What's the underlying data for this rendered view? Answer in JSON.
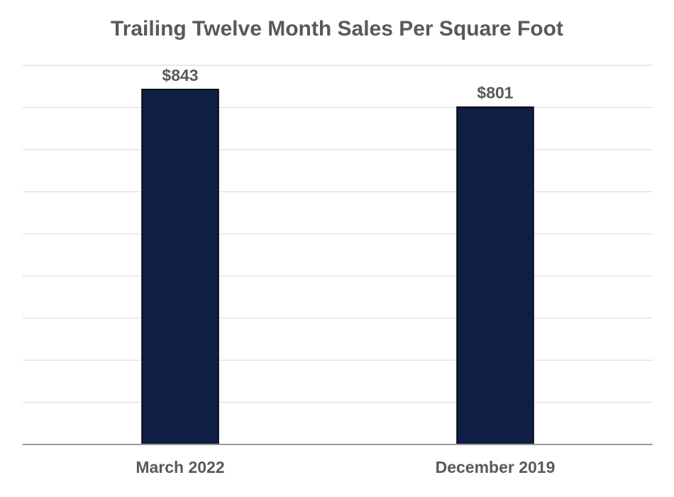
{
  "chart_data": {
    "type": "bar",
    "title": "Trailing Twelve Month Sales Per Square Foot",
    "xlabel": "",
    "ylabel": "",
    "categories": [
      "March 2022",
      "December 2019"
    ],
    "values": [
      843,
      801
    ],
    "data_labels": [
      "$843",
      "$801"
    ],
    "ylim": [
      0,
      900
    ],
    "grid": true,
    "legend": "none",
    "colors": {
      "bar": "#0e1e45",
      "text": "#595959",
      "grid": "#e3e3e3",
      "axis": "#9a9a9a"
    }
  }
}
